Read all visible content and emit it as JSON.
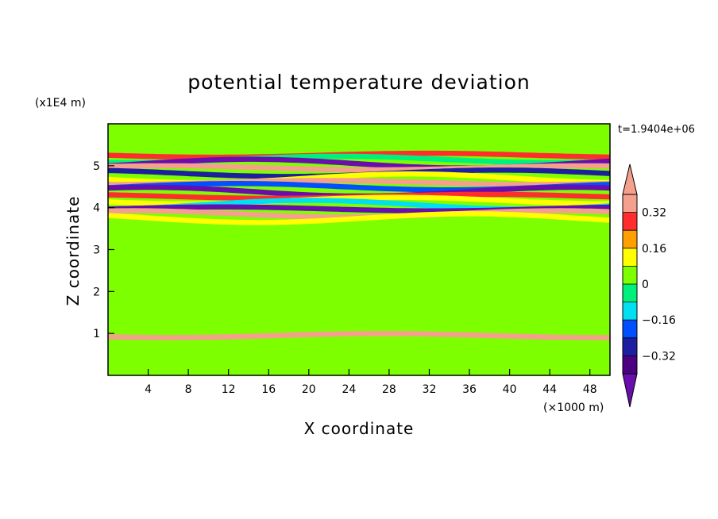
{
  "chart_data": {
    "type": "heatmap",
    "title": "potential temperature deviation",
    "xlabel": "X coordinate",
    "ylabel": "Z coordinate",
    "x_unit": "(×1000 m)",
    "y_unit": "(x1E4 m)",
    "time_label": "t=1.9404e+06",
    "xlim": [
      0,
      50
    ],
    "ylim": [
      0,
      6
    ],
    "x_ticks": [
      4,
      8,
      12,
      16,
      20,
      24,
      28,
      32,
      36,
      40,
      44,
      48
    ],
    "x_tick_labels": [
      "4",
      "8",
      "12",
      "16",
      "20",
      "24",
      "28",
      "32",
      "36",
      "40",
      "44",
      "48"
    ],
    "y_ticks": [
      1,
      2,
      3,
      4,
      5
    ],
    "y_tick_labels": [
      "1",
      "2",
      "3",
      "4",
      "5"
    ],
    "colorbar": {
      "levels": [
        -0.4,
        -0.32,
        -0.24,
        -0.16,
        -0.08,
        0,
        0.08,
        0.16,
        0.24,
        0.32,
        0.4
      ],
      "tick_values": [
        0.32,
        0.16,
        0,
        -0.16,
        -0.32
      ],
      "tick_labels": [
        "0.32",
        "0.16",
        "0",
        "−0.16",
        "−0.32"
      ],
      "colors": [
        "#4b0082",
        "#1e1ea0",
        "#0050ff",
        "#00e0f0",
        "#00f07d",
        "#7dff00",
        "#ffff00",
        "#ffa000",
        "#ff2d2d",
        "#f5a08c"
      ],
      "under_color": "#6a0dad",
      "over_color": "#f5a08c"
    },
    "bands": [
      {
        "z": 5.25,
        "value": 0.3
      },
      {
        "z": 5.15,
        "value": -0.05
      },
      {
        "z": 5.05,
        "value": -0.45
      },
      {
        "z": 4.95,
        "value": 0.45
      },
      {
        "z": 4.82,
        "value": -0.3
      },
      {
        "z": 4.7,
        "value": 0.1
      },
      {
        "z": 4.6,
        "value": 0.35
      },
      {
        "z": 4.5,
        "value": -0.2
      },
      {
        "z": 4.38,
        "value": -0.45
      },
      {
        "z": 4.27,
        "value": 0.3
      },
      {
        "z": 4.17,
        "value": 0.12
      },
      {
        "z": 4.07,
        "value": -0.12
      },
      {
        "z": 3.97,
        "value": -0.42
      },
      {
        "z": 3.85,
        "value": 0.38
      },
      {
        "z": 3.75,
        "value": 0.08
      },
      {
        "z": 0.95,
        "value": 0.32
      }
    ]
  }
}
